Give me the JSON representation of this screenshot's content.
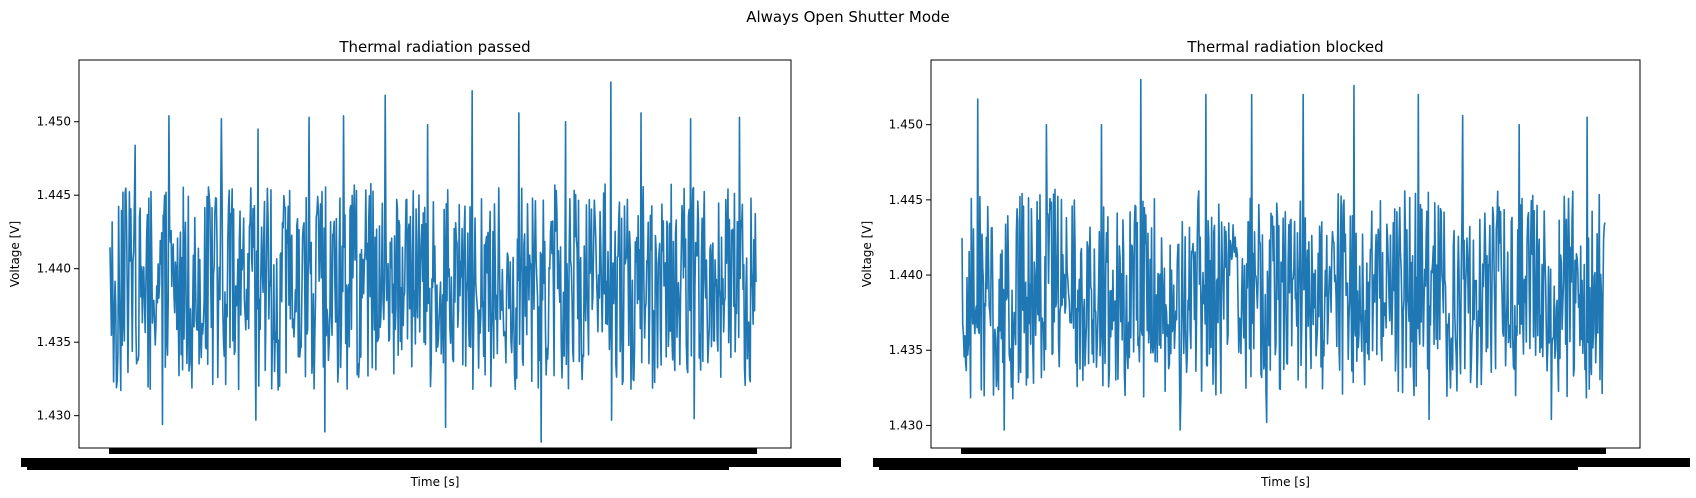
{
  "suptitle": "Always Open Shutter Mode",
  "chart_data": [
    {
      "type": "line",
      "title": "Thermal radiation passed",
      "xlabel": "Time [s]",
      "ylabel": "Voltage [V]",
      "ylim": [
        1.4278,
        1.4542
      ],
      "yticks": [
        1.43,
        1.435,
        1.44,
        1.445,
        1.45
      ],
      "ytick_labels": [
        "1.430",
        "1.435",
        "1.440",
        "1.445",
        "1.450"
      ],
      "color": "#1f77b4",
      "n_points": 900,
      "band": [
        1.4335,
        1.4443
      ],
      "spikes_high": [
        1.4484,
        1.4504,
        1.4502,
        1.4495,
        1.4503,
        1.4504,
        1.4518,
        1.4498,
        1.4521,
        1.4506,
        1.45,
        1.4527,
        1.4506,
        1.4502,
        1.4503
      ],
      "spikes_low": [
        1.4294,
        1.4297,
        1.4289,
        1.4292,
        1.4282,
        1.4297,
        1.4298
      ]
    },
    {
      "type": "line",
      "title": "Thermal radiation blocked",
      "xlabel": "Time [s]",
      "ylabel": "Voltage [V]",
      "ylim": [
        1.4285,
        1.4543
      ],
      "yticks": [
        1.43,
        1.435,
        1.44,
        1.445,
        1.45
      ],
      "ytick_labels": [
        "1.430",
        "1.435",
        "1.440",
        "1.445",
        "1.450"
      ],
      "color": "#1f77b4",
      "n_points": 900,
      "band": [
        1.4335,
        1.4442
      ],
      "spikes_high": [
        1.4517,
        1.45,
        1.45,
        1.453,
        1.452,
        1.452,
        1.452,
        1.4526,
        1.452,
        1.4506,
        1.45,
        1.4505
      ],
      "spikes_low": [
        1.4297,
        1.4297,
        1.4302,
        1.4304,
        1.4304
      ]
    }
  ]
}
